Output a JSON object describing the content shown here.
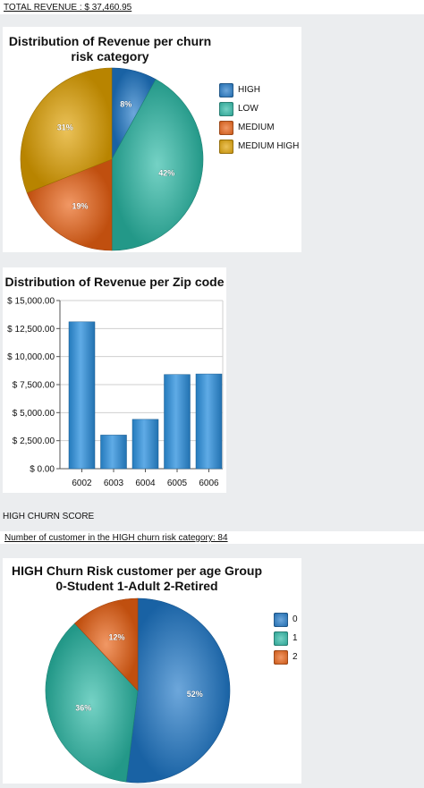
{
  "total_revenue": {
    "text": "TOTAL REVENUE : $ 37,460.95"
  },
  "high_churn_heading": "HIGH CHURN SCORE",
  "high_churn_count": {
    "text": "Number of customer in the HIGH churn risk category: 84"
  },
  "chart_data": [
    {
      "type": "pie",
      "title": "Distribution of Revenue per churn risk category",
      "title_lines": [
        "Distribution of Revenue per churn",
        "risk category"
      ],
      "categories": [
        "HIGH",
        "LOW",
        "MEDIUM",
        "MEDIUM HIGH"
      ],
      "values": [
        8,
        42,
        19,
        31
      ],
      "labels": [
        "8%",
        "42%",
        "19%",
        "31%"
      ],
      "colors": [
        "#1f78c8",
        "#2bb9a6",
        "#ea6012",
        "#e0a100"
      ],
      "legend_position": "right"
    },
    {
      "type": "bar",
      "title": "Distribution of Revenue per Zip code",
      "categories": [
        "6002",
        "6003",
        "6004",
        "6005",
        "6006"
      ],
      "values": [
        13100,
        3000,
        4400,
        8400,
        8450
      ],
      "ylim": [
        0,
        15000
      ],
      "yticks": [
        0,
        2500,
        5000,
        7500,
        10000,
        12500,
        15000
      ],
      "ytick_labels": [
        "$ 0.00",
        "$ 2,500.00",
        "$ 5,000.00",
        "$ 7,500.00",
        "$ 10,000.00",
        "$ 12,500.00",
        "$ 15,000.00"
      ],
      "color": "#2a8fdd",
      "xlabel": "",
      "ylabel": ""
    },
    {
      "type": "pie",
      "title": "HIGH Churn Risk customer per age Group 0-Student 1-Adult 2-Retired",
      "title_lines": [
        "HIGH Churn Risk customer per age Group",
        "0-Student 1-Adult 2-Retired"
      ],
      "categories": [
        "0",
        "1",
        "2"
      ],
      "values": [
        52,
        36,
        12
      ],
      "labels": [
        "52%",
        "36%",
        "12%"
      ],
      "colors": [
        "#1f78c8",
        "#2bb9a6",
        "#ea6012"
      ],
      "legend_position": "right"
    }
  ]
}
